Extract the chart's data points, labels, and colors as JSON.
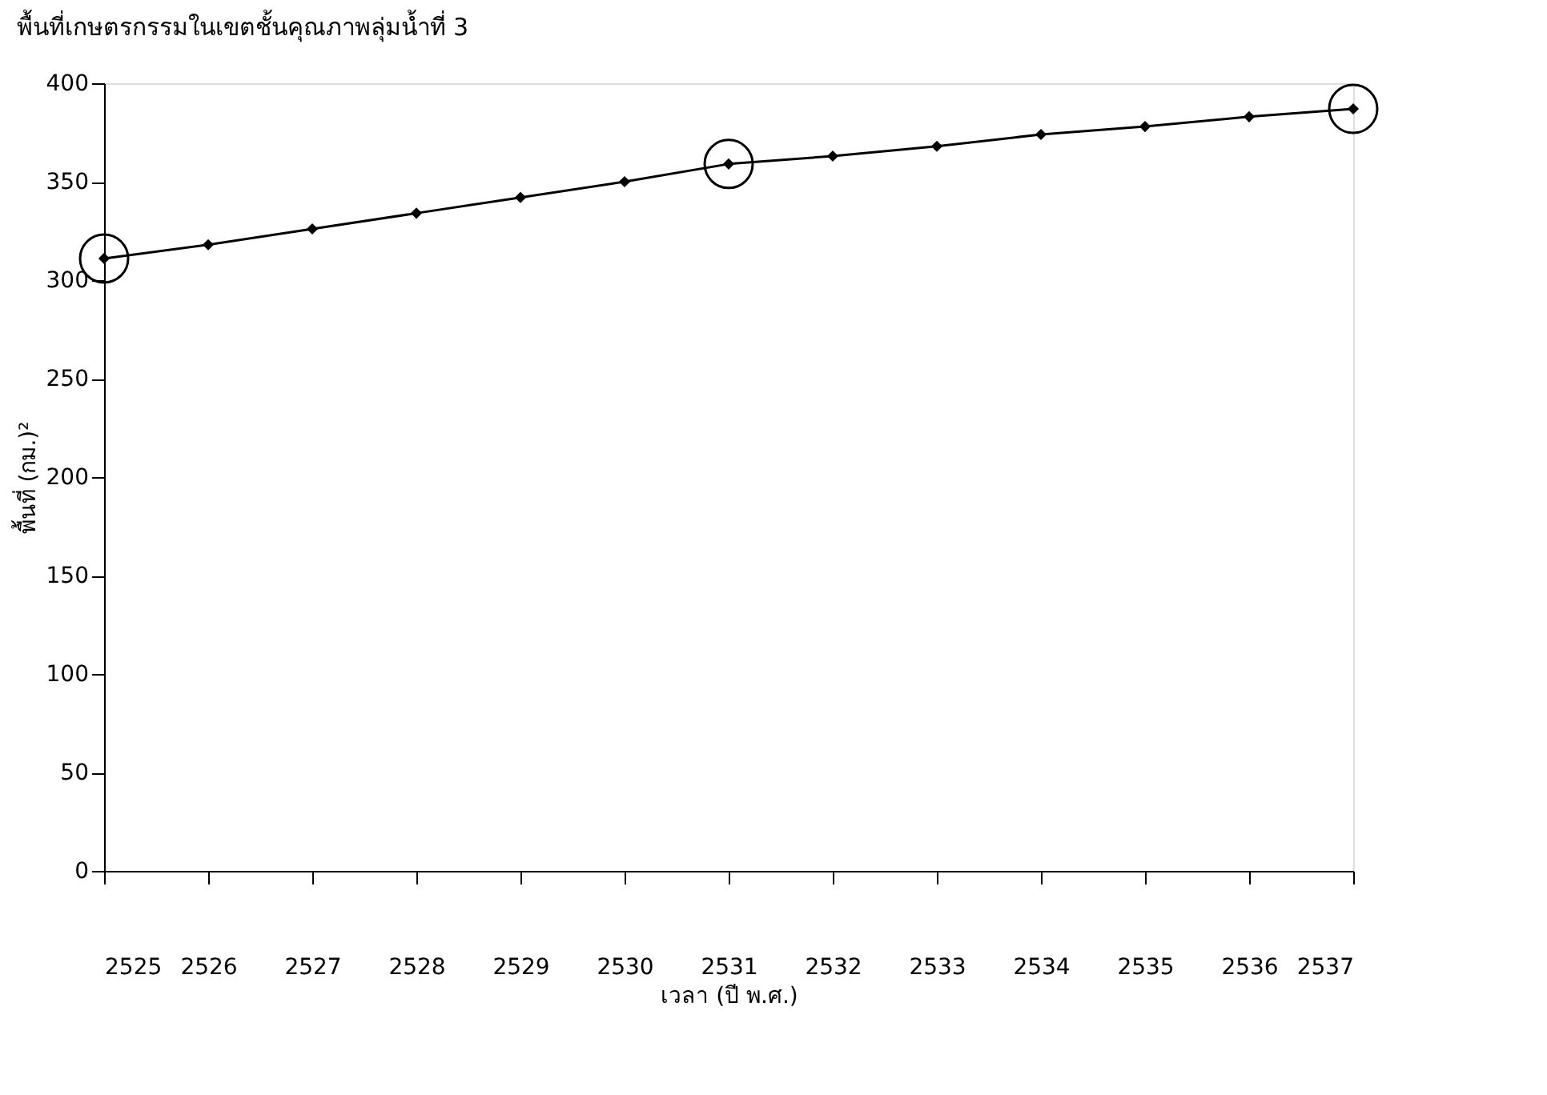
{
  "chart_data": {
    "type": "line",
    "title": "พื้นที่เกษตรกรรมในเขตชั้นคุณภาพลุ่มน้ำที่ 3",
    "xlabel": "เวลา (ปี พ.ศ.)",
    "ylabel": "พื้นที่ (กม.)²",
    "x": [
      2525,
      2526,
      2527,
      2528,
      2529,
      2530,
      2531,
      2532,
      2533,
      2534,
      2535,
      2536,
      2537
    ],
    "marker": "diamond",
    "series": [
      {
        "color": "#000000",
        "values": [
          311,
          318,
          326,
          334,
          342,
          350,
          359,
          363,
          368,
          374,
          378,
          383,
          387
        ]
      },
      {
        "type": "scatter",
        "color": "#000000",
        "marker": "circle",
        "x": [
          2525,
          2531,
          2537
        ],
        "values": [
          311,
          359,
          387
        ]
      }
    ],
    "xlim": [
      2525,
      2537
    ],
    "xticks": [
      2525,
      2526,
      2527,
      2528,
      2529,
      2530,
      2531,
      2532,
      2533,
      2534,
      2535,
      2536,
      2537
    ],
    "ylim": [
      0,
      400
    ],
    "yticks": [
      0,
      50,
      100,
      150,
      200,
      250,
      300,
      350,
      400
    ],
    "line_style": "solid"
  }
}
